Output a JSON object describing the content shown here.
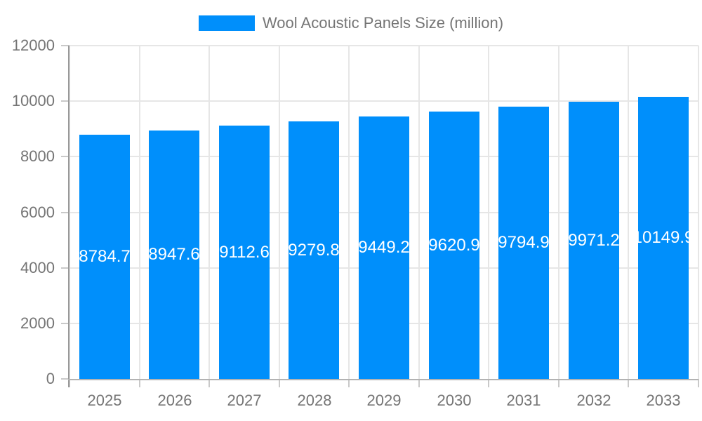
{
  "chart_data": {
    "type": "bar",
    "title": "Wool Acoustic Panels Size (million)",
    "legend_position": "top",
    "categories": [
      "2025",
      "2026",
      "2027",
      "2028",
      "2029",
      "2030",
      "2031",
      "2032",
      "2033"
    ],
    "values": [
      8784.7,
      8947.6,
      9112.6,
      9279.8,
      9449.2,
      9620.9,
      9794.9,
      9971.2,
      10149.9
    ],
    "labels": [
      "8784.7",
      "8947.6",
      "9112.6",
      "9279.8",
      "9449.2",
      "9620.9",
      "9794.9",
      "9971.2",
      "10149.9"
    ],
    "xlabel": "",
    "ylabel": "",
    "ylim": [
      0,
      12000
    ],
    "ytick_step": 2000,
    "yticks": [
      "0",
      "2000",
      "4000",
      "6000",
      "8000",
      "10000",
      "12000"
    ],
    "grid": "horizontal and vertical category boundaries",
    "colors": {
      "bar": "#008ffb",
      "data_label": "#ffffff",
      "axis_label": "#757575",
      "grid_line": "#e6e6e6",
      "tick_mark": "#c9c9c9",
      "y_axis_line": "#999999",
      "x_axis_line": "#b3b3b3"
    }
  }
}
